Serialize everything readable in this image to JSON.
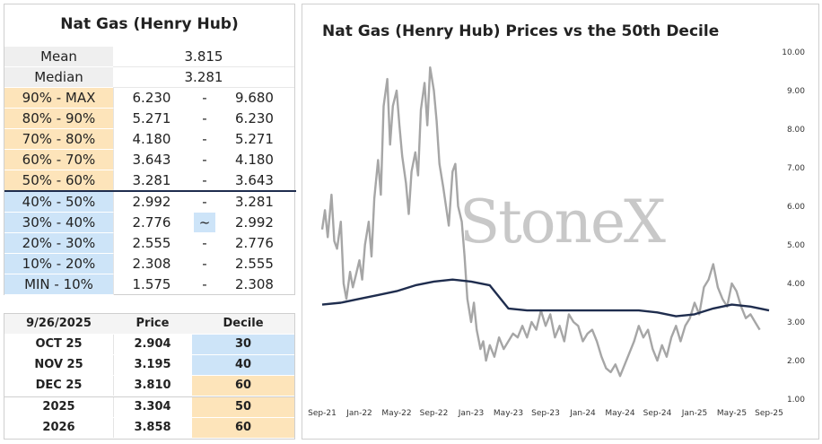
{
  "decile_table": {
    "title": "Nat Gas (Henry Hub)",
    "stats": [
      {
        "label": "Mean",
        "value": "3.815"
      },
      {
        "label": "Median",
        "value": "3.281"
      }
    ],
    "rows": [
      {
        "range": "90% - MAX",
        "low": "6.230",
        "sep": "-",
        "high": "9.680",
        "color": "orange"
      },
      {
        "range": "80% - 90%",
        "low": "5.271",
        "sep": "-",
        "high": "6.230",
        "color": "orange"
      },
      {
        "range": "70% - 80%",
        "low": "4.180",
        "sep": "-",
        "high": "5.271",
        "color": "orange"
      },
      {
        "range": "60% - 70%",
        "low": "3.643",
        "sep": "-",
        "high": "4.180",
        "color": "orange"
      },
      {
        "range": "50% - 60%",
        "low": "3.281",
        "sep": "-",
        "high": "3.643",
        "color": "orange"
      },
      {
        "range": "40% - 50%",
        "low": "2.992",
        "sep": "-",
        "high": "3.281",
        "color": "blue"
      },
      {
        "range": "30% - 40%",
        "low": "2.776",
        "sep": "~",
        "high": "2.992",
        "color": "blue"
      },
      {
        "range": "20% - 30%",
        "low": "2.555",
        "sep": "-",
        "high": "2.776",
        "color": "blue"
      },
      {
        "range": "10% - 20%",
        "low": "2.308",
        "sep": "-",
        "high": "2.555",
        "color": "blue"
      },
      {
        "range": "MIN - 10%",
        "low": "1.575",
        "sep": "-",
        "high": "2.308",
        "color": "blue"
      }
    ]
  },
  "futures_table": {
    "headers": [
      "9/26/2025",
      "Price",
      "Decile"
    ],
    "rows": [
      {
        "contract": "OCT 25",
        "price": "2.904",
        "decile": "30",
        "color": "blue"
      },
      {
        "contract": "NOV 25",
        "price": "3.195",
        "decile": "40",
        "color": "blue"
      },
      {
        "contract": "DEC 25",
        "price": "3.810",
        "decile": "60",
        "color": "orange"
      },
      {
        "contract": "2025",
        "price": "3.304",
        "decile": "50",
        "color": "orange"
      },
      {
        "contract": "2026",
        "price": "3.858",
        "decile": "60",
        "color": "orange"
      }
    ]
  },
  "colors": {
    "orange": "#fde4ba",
    "blue": "#cde4f8",
    "price_line": "#a6a6a6",
    "decile_line": "#1f2d4e"
  },
  "chart_data": {
    "type": "line",
    "title": "Nat Gas (Henry Hub) Prices vs the 50th Decile",
    "watermark": "StoneX",
    "x_ticks": [
      "Sep-21",
      "Jan-22",
      "May-22",
      "Sep-22",
      "Jan-23",
      "May-23",
      "Sep-23",
      "Jan-24",
      "May-24",
      "Sep-24",
      "Jan-25",
      "May-25",
      "Sep-25"
    ],
    "y_ticks": [
      "1.00",
      "2.00",
      "3.00",
      "4.00",
      "5.00",
      "6.00",
      "7.00",
      "8.00",
      "9.00",
      "10.00"
    ],
    "ylim": [
      1,
      10
    ],
    "y_axis_side": "right",
    "grid": false,
    "series": [
      {
        "color_key": "price_line",
        "x_month_index": [
          0,
          0.3,
          0.6,
          1,
          1.3,
          1.6,
          2,
          2.3,
          2.6,
          3,
          3.3,
          3.6,
          4,
          4.3,
          4.6,
          5,
          5.3,
          5.6,
          6,
          6.3,
          6.6,
          7,
          7.3,
          7.6,
          8,
          8.3,
          8.6,
          9,
          9.3,
          9.6,
          10,
          10.3,
          10.6,
          11,
          11.3,
          11.6,
          12,
          12.3,
          12.6,
          13,
          13.3,
          13.6,
          14,
          14.3,
          14.6,
          15,
          15.3,
          15.6,
          16,
          16.3,
          16.6,
          17,
          17.3,
          17.6,
          18,
          18.5,
          19,
          19.5,
          20,
          20.5,
          21,
          21.5,
          22,
          22.5,
          23,
          23.5,
          24,
          24.5,
          25,
          25.5,
          26,
          26.5,
          27,
          27.5,
          28,
          28.5,
          29,
          29.5,
          30,
          30.5,
          31,
          31.5,
          32,
          32.5,
          33,
          33.5,
          34,
          34.5,
          35,
          35.5,
          36,
          36.5,
          37,
          37.5,
          38,
          38.5,
          39,
          39.5,
          40,
          40.5,
          41,
          41.5,
          42,
          42.5,
          43,
          43.5,
          44,
          44.5,
          45,
          45.5,
          46,
          46.5,
          47,
          47.5,
          48
        ],
        "values": [
          5.4,
          5.9,
          5.2,
          6.3,
          5.1,
          4.9,
          5.6,
          4.0,
          3.6,
          4.3,
          3.9,
          4.2,
          4.6,
          4.1,
          5.0,
          5.6,
          4.7,
          6.2,
          7.2,
          6.3,
          8.6,
          9.3,
          7.6,
          8.6,
          9.0,
          8.1,
          7.3,
          6.6,
          5.8,
          6.9,
          7.4,
          6.8,
          8.5,
          9.2,
          8.1,
          9.6,
          9.0,
          8.2,
          7.1,
          6.5,
          6.0,
          5.5,
          6.9,
          7.1,
          6.0,
          5.6,
          4.7,
          3.6,
          3.0,
          3.5,
          2.8,
          2.3,
          2.5,
          2.0,
          2.4,
          2.1,
          2.6,
          2.3,
          2.5,
          2.7,
          2.6,
          2.9,
          2.6,
          3.0,
          2.8,
          3.3,
          2.9,
          3.2,
          2.6,
          2.9,
          2.5,
          3.2,
          3.0,
          2.9,
          2.5,
          2.7,
          2.8,
          2.5,
          2.1,
          1.8,
          1.7,
          1.9,
          1.6,
          1.9,
          2.2,
          2.5,
          2.9,
          2.6,
          2.8,
          2.3,
          2.0,
          2.4,
          2.1,
          2.6,
          2.9,
          2.5,
          2.9,
          3.1,
          3.5,
          3.2,
          3.9,
          4.1,
          4.5,
          3.9,
          3.6,
          3.4,
          4.0,
          3.8,
          3.4,
          3.1,
          3.2,
          3.0,
          2.8
        ]
      },
      {
        "color_key": "decile_line",
        "x_month_index": [
          0,
          2,
          4,
          6,
          8,
          10,
          12,
          14,
          16,
          18,
          20,
          22,
          24,
          26,
          28,
          30,
          32,
          34,
          36,
          38,
          40,
          42,
          44,
          46,
          48
        ],
        "values": [
          3.45,
          3.5,
          3.6,
          3.7,
          3.8,
          3.95,
          4.05,
          4.1,
          4.05,
          3.95,
          3.35,
          3.3,
          3.3,
          3.3,
          3.3,
          3.3,
          3.3,
          3.3,
          3.25,
          3.15,
          3.2,
          3.35,
          3.45,
          3.4,
          3.3
        ]
      }
    ]
  }
}
